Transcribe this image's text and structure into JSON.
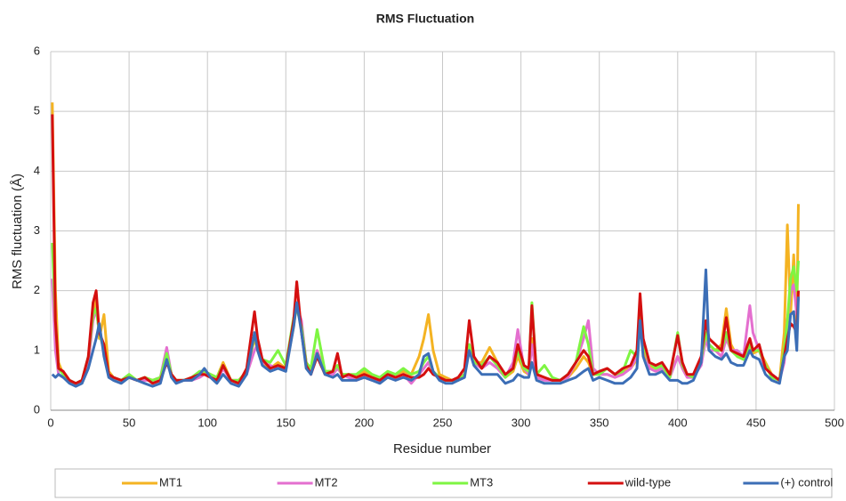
{
  "chart_data": {
    "type": "line",
    "title": "RMS Fluctuation",
    "x_label": "Residue number",
    "y_label": "RMS fluctuation (Å)",
    "xlim": [
      0,
      500
    ],
    "xticks": [
      0,
      50,
      100,
      150,
      200,
      250,
      300,
      350,
      400,
      450,
      500
    ],
    "ylim": [
      0,
      6
    ],
    "yticks": [
      0,
      1,
      2,
      3,
      4,
      5,
      6
    ],
    "grid": true,
    "legend": "bottom",
    "x": [
      1,
      3,
      5,
      8,
      12,
      16,
      20,
      24,
      27,
      29,
      31,
      34,
      37,
      40,
      45,
      50,
      55,
      60,
      65,
      70,
      74,
      77,
      80,
      85,
      90,
      95,
      98,
      102,
      106,
      110,
      115,
      120,
      125,
      130,
      132,
      135,
      140,
      145,
      150,
      155,
      157,
      160,
      163,
      166,
      170,
      175,
      180,
      183,
      186,
      190,
      195,
      200,
      205,
      210,
      215,
      220,
      225,
      230,
      235,
      238,
      241,
      244,
      248,
      252,
      256,
      260,
      264,
      267,
      270,
      275,
      280,
      285,
      290,
      295,
      298,
      302,
      305,
      307,
      310,
      315,
      320,
      325,
      330,
      335,
      340,
      343,
      346,
      350,
      355,
      360,
      365,
      370,
      374,
      376,
      378,
      382,
      386,
      390,
      395,
      400,
      403,
      406,
      410,
      415,
      418,
      420,
      424,
      428,
      431,
      434,
      438,
      442,
      446,
      448,
      452,
      456,
      460,
      465,
      468,
      470,
      472,
      474,
      476,
      477
    ],
    "series": [
      {
        "name": "MT1",
        "color": "#f4b322",
        "values": [
          5.15,
          2.0,
          0.8,
          0.6,
          0.5,
          0.45,
          0.5,
          0.8,
          1.6,
          1.9,
          1.2,
          1.6,
          0.65,
          0.55,
          0.5,
          0.55,
          0.5,
          0.55,
          0.5,
          0.55,
          0.85,
          0.6,
          0.5,
          0.5,
          0.55,
          0.6,
          0.65,
          0.6,
          0.55,
          0.8,
          0.5,
          0.5,
          0.65,
          1.2,
          1.0,
          0.8,
          0.7,
          0.8,
          0.7,
          1.4,
          1.8,
          1.4,
          0.8,
          0.65,
          1.0,
          0.65,
          0.65,
          0.7,
          0.6,
          0.6,
          0.55,
          0.65,
          0.55,
          0.55,
          0.6,
          0.6,
          0.65,
          0.6,
          0.9,
          1.2,
          1.6,
          1.0,
          0.6,
          0.55,
          0.5,
          0.55,
          0.6,
          1.0,
          0.8,
          0.8,
          1.05,
          0.8,
          0.55,
          0.65,
          0.9,
          0.65,
          0.6,
          1.2,
          0.6,
          0.55,
          0.5,
          0.5,
          0.55,
          0.7,
          0.9,
          0.8,
          0.6,
          0.6,
          0.6,
          0.55,
          0.65,
          0.7,
          0.85,
          1.5,
          1.0,
          0.75,
          0.7,
          0.7,
          0.6,
          0.9,
          0.75,
          0.6,
          0.55,
          0.8,
          1.2,
          1.1,
          1.0,
          1.1,
          1.7,
          1.1,
          0.9,
          0.85,
          1.1,
          0.95,
          1.0,
          0.8,
          0.6,
          0.5,
          1.3,
          3.1,
          1.6,
          2.6,
          1.5,
          3.45
        ]
      },
      {
        "name": "MT2",
        "color": "#e46fcf",
        "values": [
          2.2,
          1.0,
          0.6,
          0.55,
          0.5,
          0.45,
          0.5,
          0.8,
          1.5,
          1.7,
          1.3,
          1.0,
          0.6,
          0.55,
          0.5,
          0.55,
          0.5,
          0.5,
          0.5,
          0.55,
          1.05,
          0.6,
          0.5,
          0.5,
          0.5,
          0.55,
          0.6,
          0.55,
          0.5,
          0.7,
          0.5,
          0.5,
          0.6,
          1.0,
          1.1,
          0.8,
          0.75,
          0.7,
          0.7,
          1.5,
          1.75,
          1.5,
          0.8,
          0.6,
          1.0,
          0.6,
          0.6,
          0.7,
          0.6,
          0.55,
          0.5,
          0.55,
          0.5,
          0.5,
          0.6,
          0.55,
          0.6,
          0.45,
          0.6,
          0.7,
          0.8,
          0.6,
          0.55,
          0.5,
          0.5,
          0.55,
          0.6,
          1.1,
          0.8,
          0.7,
          0.8,
          0.7,
          0.55,
          0.8,
          1.35,
          0.7,
          0.6,
          1.1,
          0.55,
          0.5,
          0.5,
          0.5,
          0.55,
          0.8,
          1.2,
          1.5,
          0.7,
          0.6,
          0.6,
          0.55,
          0.6,
          0.7,
          0.9,
          1.7,
          1.2,
          0.7,
          0.65,
          0.7,
          0.55,
          0.9,
          0.7,
          0.55,
          0.55,
          0.75,
          1.2,
          1.0,
          1.0,
          0.9,
          1.2,
          1.0,
          1.0,
          0.9,
          1.75,
          1.3,
          1.0,
          0.7,
          0.6,
          0.5,
          0.8,
          1.5,
          2.0,
          2.1,
          1.6,
          1.9
        ]
      },
      {
        "name": "MT3",
        "color": "#7ef542",
        "values": [
          2.8,
          1.5,
          0.7,
          0.6,
          0.5,
          0.45,
          0.5,
          0.9,
          1.6,
          1.7,
          1.3,
          1.0,
          0.6,
          0.55,
          0.5,
          0.6,
          0.5,
          0.55,
          0.5,
          0.55,
          0.95,
          0.6,
          0.5,
          0.5,
          0.55,
          0.65,
          0.65,
          0.6,
          0.55,
          0.75,
          0.5,
          0.5,
          0.65,
          1.25,
          1.1,
          0.85,
          0.8,
          1.0,
          0.75,
          1.55,
          1.7,
          1.4,
          0.8,
          0.7,
          1.35,
          0.65,
          0.65,
          0.75,
          0.6,
          0.6,
          0.6,
          0.7,
          0.6,
          0.55,
          0.65,
          0.6,
          0.7,
          0.6,
          0.65,
          0.8,
          0.9,
          0.65,
          0.55,
          0.5,
          0.5,
          0.5,
          0.6,
          1.1,
          0.8,
          0.75,
          0.9,
          0.75,
          0.55,
          0.7,
          1.0,
          0.7,
          0.65,
          1.8,
          0.6,
          0.75,
          0.55,
          0.5,
          0.6,
          0.8,
          1.4,
          1.1,
          0.6,
          0.6,
          0.7,
          0.6,
          0.65,
          1.0,
          0.9,
          1.6,
          1.1,
          0.8,
          0.7,
          0.75,
          0.55,
          1.3,
          0.75,
          0.6,
          0.55,
          0.85,
          1.3,
          1.1,
          1.0,
          1.0,
          1.3,
          1.0,
          0.9,
          0.85,
          1.1,
          1.0,
          1.0,
          0.75,
          0.55,
          0.5,
          1.0,
          1.5,
          2.2,
          2.4,
          2.0,
          2.5
        ]
      },
      {
        "name": "wild-type",
        "color": "#d40f0f",
        "values": [
          4.95,
          1.5,
          0.7,
          0.65,
          0.5,
          0.45,
          0.5,
          0.9,
          1.8,
          2.0,
          1.3,
          1.1,
          0.6,
          0.55,
          0.5,
          0.55,
          0.5,
          0.55,
          0.45,
          0.5,
          0.8,
          0.6,
          0.5,
          0.5,
          0.55,
          0.6,
          0.6,
          0.55,
          0.5,
          0.75,
          0.5,
          0.45,
          0.7,
          1.65,
          1.2,
          0.85,
          0.7,
          0.75,
          0.7,
          1.5,
          2.15,
          1.3,
          0.75,
          0.6,
          0.9,
          0.6,
          0.65,
          0.95,
          0.55,
          0.6,
          0.55,
          0.6,
          0.55,
          0.5,
          0.6,
          0.55,
          0.6,
          0.55,
          0.55,
          0.6,
          0.7,
          0.6,
          0.55,
          0.5,
          0.5,
          0.55,
          0.7,
          1.5,
          0.9,
          0.7,
          0.9,
          0.8,
          0.6,
          0.7,
          1.1,
          0.75,
          0.7,
          1.75,
          0.6,
          0.55,
          0.5,
          0.5,
          0.6,
          0.8,
          1.0,
          0.9,
          0.6,
          0.65,
          0.7,
          0.6,
          0.7,
          0.75,
          1.0,
          1.95,
          1.2,
          0.8,
          0.75,
          0.8,
          0.6,
          1.25,
          0.8,
          0.6,
          0.6,
          0.9,
          1.5,
          1.2,
          1.1,
          1.0,
          1.55,
          1.0,
          0.95,
          0.9,
          1.2,
          1.0,
          1.1,
          0.7,
          0.6,
          0.5,
          0.9,
          1.2,
          1.45,
          1.4,
          1.3,
          2.0
        ]
      },
      {
        "name": "(+) control",
        "color": "#3c6eb6",
        "values": [
          0.6,
          0.55,
          0.6,
          0.55,
          0.45,
          0.4,
          0.45,
          0.7,
          1.0,
          1.2,
          1.45,
          0.9,
          0.55,
          0.5,
          0.45,
          0.55,
          0.5,
          0.45,
          0.4,
          0.45,
          0.85,
          0.55,
          0.45,
          0.5,
          0.5,
          0.6,
          0.7,
          0.55,
          0.45,
          0.6,
          0.45,
          0.4,
          0.6,
          1.3,
          1.0,
          0.75,
          0.65,
          0.7,
          0.65,
          1.4,
          1.8,
          1.3,
          0.7,
          0.6,
          0.95,
          0.6,
          0.55,
          0.6,
          0.5,
          0.5,
          0.5,
          0.55,
          0.5,
          0.45,
          0.55,
          0.5,
          0.55,
          0.5,
          0.6,
          0.9,
          0.95,
          0.65,
          0.5,
          0.45,
          0.45,
          0.5,
          0.55,
          1.0,
          0.75,
          0.6,
          0.6,
          0.6,
          0.45,
          0.5,
          0.6,
          0.55,
          0.55,
          0.8,
          0.5,
          0.45,
          0.45,
          0.45,
          0.5,
          0.55,
          0.65,
          0.7,
          0.5,
          0.55,
          0.5,
          0.45,
          0.45,
          0.55,
          0.7,
          1.5,
          0.9,
          0.6,
          0.6,
          0.65,
          0.5,
          0.5,
          0.45,
          0.45,
          0.5,
          0.8,
          2.35,
          1.0,
          0.9,
          0.85,
          0.95,
          0.8,
          0.75,
          0.75,
          1.0,
          0.9,
          0.85,
          0.6,
          0.5,
          0.45,
          0.9,
          1.0,
          1.6,
          1.65,
          1.0,
          1.9
        ]
      }
    ]
  }
}
